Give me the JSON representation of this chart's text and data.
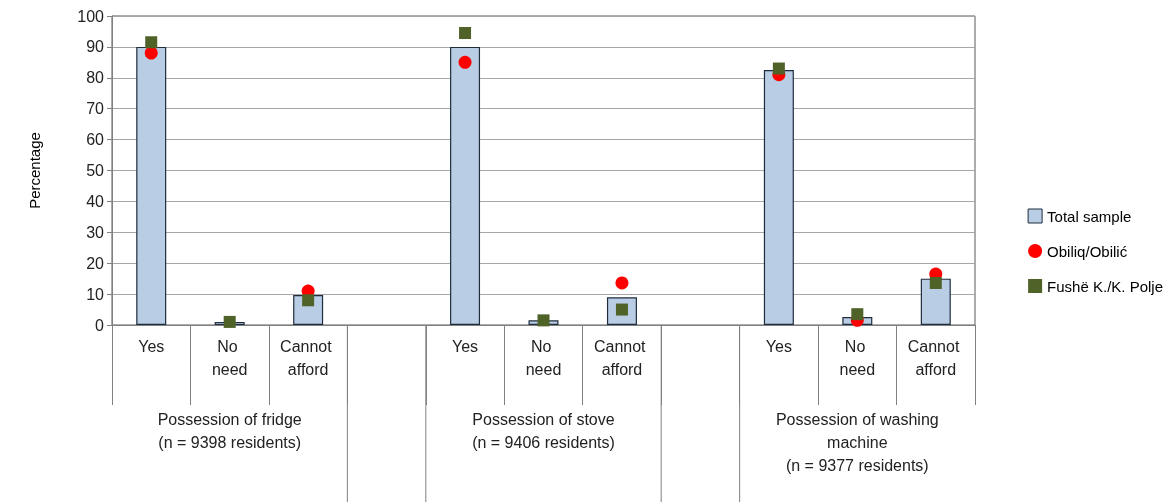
{
  "chart_data": {
    "type": "bar",
    "ylabel": "Percentage",
    "categories": [
      "Yes",
      "No need",
      "Cannot afford",
      null,
      "Yes",
      "No need",
      "Cannot afford",
      null,
      "Yes",
      "No need",
      "Cannot afford"
    ],
    "series": [
      {
        "name": "Total sample",
        "color": "#b9cde5",
        "values": [
          90,
          1,
          9.7,
          null,
          90,
          1.5,
          9,
          null,
          82.5,
          2.6,
          15
        ]
      },
      {
        "name": "Obiliq/Obilić",
        "type": "scatter",
        "marker": "circle",
        "color": "#ff0000",
        "values": [
          88,
          null,
          11,
          null,
          85,
          null,
          13.6,
          null,
          81,
          1.5,
          16.5
        ]
      },
      {
        "name": "Fushë K./K. Polje",
        "type": "scatter",
        "marker": "square",
        "color": "#4f6228",
        "values": [
          91.5,
          1,
          8,
          null,
          94.5,
          1.5,
          5,
          null,
          83,
          3.5,
          13.6
        ]
      }
    ],
    "ylim": [
      0,
      100
    ],
    "yticks": [
      0,
      10,
      20,
      30,
      40,
      50,
      60,
      70,
      80,
      90,
      100
    ],
    "grid": "y",
    "legend": "right",
    "annotations": [
      "Possession of fridge\n(n = 9398 residents)",
      "Possession of stove\n(n = 9406 residents)",
      "Possession of washing\nmachine\n(n = 9377 residents)"
    ]
  }
}
